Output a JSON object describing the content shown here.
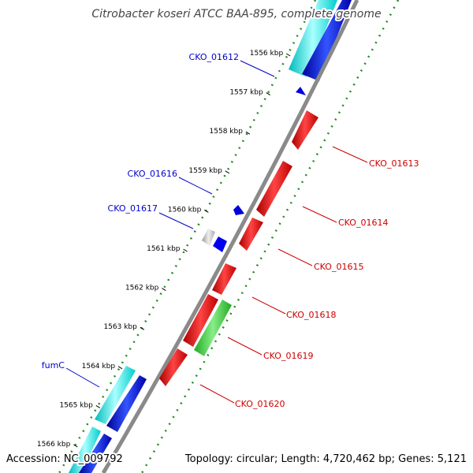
{
  "title": "Citrobacter koseri ATCC BAA-895, complete genome",
  "footer": {
    "accession": "Accession: NC_009792",
    "summary": "Topology: circular; Length: 4,720,462 bp; Genes: 5,121"
  },
  "colors": {
    "backbone": "#8a8a8a",
    "forward_cds": "#0000ee",
    "forward_rna": "#00e5e5",
    "reverse_cds": "#ee0000",
    "reverse_rna": "#33cc33",
    "other": "#bbbbbb",
    "label_blue": "#0000cc",
    "label_red": "#cc0000",
    "dots": "#228b22"
  },
  "ticks": [
    {
      "label": "1556 kbp"
    },
    {
      "label": "1557 kbp"
    },
    {
      "label": "1558 kbp"
    },
    {
      "label": "1559 kbp"
    },
    {
      "label": "1560 kbp"
    },
    {
      "label": "1561 kbp"
    },
    {
      "label": "1562 kbp"
    },
    {
      "label": "1563 kbp"
    },
    {
      "label": "1564 kbp"
    },
    {
      "label": "1565 kbp"
    },
    {
      "label": "1566 kbp"
    }
  ],
  "gene_labels": {
    "cko_01612": "CKO_01612",
    "cko_01613": "CKO_01613",
    "cko_01614": "CKO_01614",
    "cko_01615": "CKO_01615",
    "cko_01616": "CKO_01616",
    "cko_01617": "CKO_01617",
    "cko_01618": "CKO_01618",
    "cko_01619": "CKO_01619",
    "cko_01620": "CKO_01620",
    "fumc": "fumC"
  }
}
